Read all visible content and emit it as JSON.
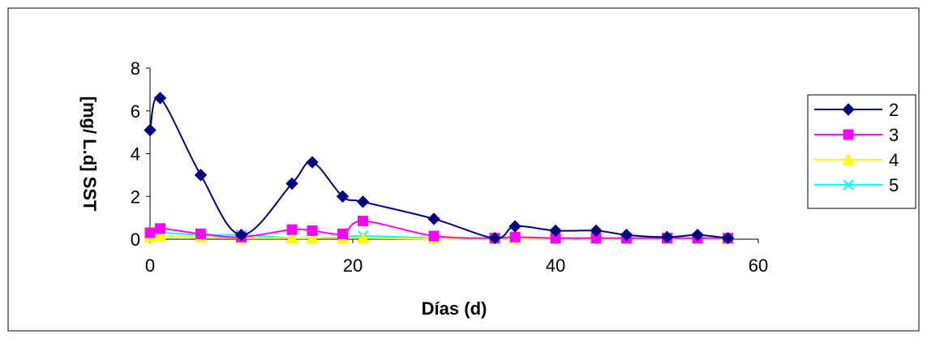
{
  "chart_data": {
    "type": "line",
    "title": "",
    "xlabel": "Días (d)",
    "ylabel": "[mg/ L.d] SST",
    "xlim": [
      0,
      60
    ],
    "ylim": [
      0,
      8
    ],
    "x_ticks": [
      0,
      20,
      40,
      60
    ],
    "y_ticks": [
      0,
      2,
      4,
      6,
      8
    ],
    "x_tick_labels": [
      "0",
      "20",
      "40",
      "60"
    ],
    "y_tick_labels": [
      "0",
      "2",
      "4",
      "6",
      "8"
    ],
    "grid": false,
    "smooth": true,
    "legend_position": "right",
    "series": [
      {
        "name": "2",
        "color": "#000080",
        "marker": "diamond",
        "x": [
          0,
          1,
          5,
          9,
          14,
          16,
          19,
          21,
          28,
          34,
          36,
          40,
          44,
          47,
          51,
          54,
          57
        ],
        "y": [
          5.1,
          6.6,
          3.0,
          0.2,
          2.6,
          3.6,
          2.0,
          1.75,
          0.95,
          0.05,
          0.6,
          0.4,
          0.4,
          0.2,
          0.1,
          0.2,
          0.05
        ]
      },
      {
        "name": "3",
        "color": "#ff00ff",
        "marker": "square",
        "x": [
          0,
          1,
          5,
          9,
          14,
          16,
          19,
          21,
          28,
          34,
          36,
          40,
          44,
          47,
          51,
          54,
          57
        ],
        "y": [
          0.3,
          0.5,
          0.25,
          0.1,
          0.45,
          0.4,
          0.25,
          0.85,
          0.15,
          0.05,
          0.1,
          0.05,
          0.05,
          0.05,
          0.05,
          0.05,
          0.05
        ]
      },
      {
        "name": "4",
        "color": "#ffff00",
        "marker": "triangle",
        "x": [
          0,
          1,
          5,
          9,
          14,
          16,
          19,
          21,
          28,
          34,
          36,
          40,
          44,
          47,
          51,
          54,
          57
        ],
        "y": [
          0.1,
          0.15,
          0.1,
          0.05,
          0.05,
          0.05,
          0.05,
          0.05,
          0.02,
          0.02,
          0.02,
          0.02,
          0.02,
          0.02,
          0.02,
          0.02,
          0.02
        ]
      },
      {
        "name": "5",
        "color": "#00ffff",
        "marker": "x",
        "x": [
          0,
          1,
          5,
          9,
          14,
          16,
          19,
          21,
          28,
          34,
          36,
          40,
          44,
          47,
          51,
          54,
          57
        ],
        "y": [
          0.2,
          0.3,
          0.2,
          0.2,
          0.05,
          0.05,
          0.1,
          0.15,
          0.05,
          0.02,
          0.02,
          0.02,
          0.02,
          0.02,
          0.02,
          0.02,
          0.02
        ]
      }
    ]
  }
}
